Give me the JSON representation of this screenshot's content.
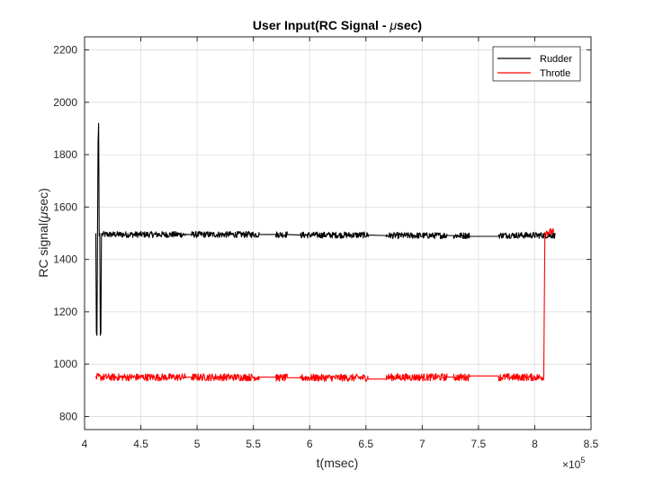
{
  "chart_data": {
    "type": "line",
    "title": "User Input(RC Signal - ",
    "title_symbol": "μ",
    "title_suffix": "sec)",
    "xlabel": "t(msec)",
    "ylabel": "RC signal(",
    "ylabel_symbol": "μ",
    "ylabel_suffix": "sec)",
    "x_exponent_base": "×10",
    "x_exponent_power": "5",
    "xlim": [
      4.0,
      8.5
    ],
    "ylim": [
      750,
      2250
    ],
    "x_ticks": [
      4,
      4.5,
      5,
      5.5,
      6,
      6.5,
      7,
      7.5,
      8,
      8.5
    ],
    "x_tick_labels": [
      "4",
      "4.5",
      "5",
      "5.5",
      "6",
      "6.5",
      "7",
      "7.5",
      "8",
      "8.5"
    ],
    "y_ticks": [
      800,
      1000,
      1200,
      1400,
      1600,
      1800,
      2000,
      2200
    ],
    "y_tick_labels": [
      "800",
      "1000",
      "1200",
      "1400",
      "1600",
      "1800",
      "2000",
      "2200"
    ],
    "grid": true,
    "legend_position": "top-right",
    "series": [
      {
        "name": "Rudder",
        "color": "#000000",
        "noise_amplitude": 12,
        "segments": [
          {
            "x": [
              4.1,
              4.105,
              4.11,
              4.115,
              4.12,
              4.125,
              4.13,
              4.135,
              4.14,
              4.145,
              4.15,
              4.155,
              4.16
            ],
            "y": [
              1500,
              1120,
              1110,
              1500,
              1850,
              1920,
              1490,
              1500,
              1110,
              1120,
              1490,
              1500,
              1495
            ],
            "noisy": false
          },
          {
            "x": [
              4.16,
              4.9
            ],
            "y": [
              1495,
              1495
            ],
            "noisy": true
          },
          {
            "x": [
              4.9,
              4.95
            ],
            "y": [
              1495,
              1495
            ],
            "noisy": false
          },
          {
            "x": [
              4.95,
              5.55
            ],
            "y": [
              1495,
              1495
            ],
            "noisy": true
          },
          {
            "x": [
              5.55,
              5.7
            ],
            "y": [
              1495,
              1495
            ],
            "noisy": false
          },
          {
            "x": [
              5.7,
              5.8
            ],
            "y": [
              1495,
              1495
            ],
            "noisy": true
          },
          {
            "x": [
              5.8,
              5.92
            ],
            "y": [
              1495,
              1493
            ],
            "noisy": false
          },
          {
            "x": [
              5.92,
              6.52
            ],
            "y": [
              1493,
              1493
            ],
            "noisy": true
          },
          {
            "x": [
              6.52,
              6.68
            ],
            "y": [
              1493,
              1491
            ],
            "noisy": false
          },
          {
            "x": [
              6.68,
              7.22
            ],
            "y": [
              1491,
              1491
            ],
            "noisy": true
          },
          {
            "x": [
              7.22,
              7.28
            ],
            "y": [
              1491,
              1491
            ],
            "noisy": false
          },
          {
            "x": [
              7.28,
              7.42
            ],
            "y": [
              1491,
              1491
            ],
            "noisy": true
          },
          {
            "x": [
              7.42,
              7.68
            ],
            "y": [
              1488,
              1488
            ],
            "noisy": false
          },
          {
            "x": [
              7.68,
              8.18
            ],
            "y": [
              1492,
              1492
            ],
            "noisy": true
          }
        ]
      },
      {
        "name": "Throtle",
        "color": "#ff0000",
        "noise_amplitude": 14,
        "segments": [
          {
            "x": [
              4.1,
              4.9
            ],
            "y": [
              950,
              950
            ],
            "noisy": true
          },
          {
            "x": [
              4.9,
              4.95
            ],
            "y": [
              950,
              950
            ],
            "noisy": false
          },
          {
            "x": [
              4.95,
              5.55
            ],
            "y": [
              950,
              950
            ],
            "noisy": true
          },
          {
            "x": [
              5.55,
              5.7
            ],
            "y": [
              950,
              950
            ],
            "noisy": false
          },
          {
            "x": [
              5.7,
              5.8
            ],
            "y": [
              948,
              948
            ],
            "noisy": true
          },
          {
            "x": [
              5.8,
              5.92
            ],
            "y": [
              948,
              948
            ],
            "noisy": false
          },
          {
            "x": [
              5.92,
              6.52
            ],
            "y": [
              948,
              948
            ],
            "noisy": true
          },
          {
            "x": [
              6.52,
              6.68
            ],
            "y": [
              943,
              943
            ],
            "noisy": false
          },
          {
            "x": [
              6.68,
              7.22
            ],
            "y": [
              950,
              950
            ],
            "noisy": true
          },
          {
            "x": [
              7.22,
              7.28
            ],
            "y": [
              950,
              950
            ],
            "noisy": false
          },
          {
            "x": [
              7.28,
              7.42
            ],
            "y": [
              950,
              950
            ],
            "noisy": true
          },
          {
            "x": [
              7.42,
              7.68
            ],
            "y": [
              955,
              955
            ],
            "noisy": false
          },
          {
            "x": [
              7.68,
              8.08
            ],
            "y": [
              950,
              950
            ],
            "noisy": true
          },
          {
            "x": [
              8.08,
              8.09,
              8.1
            ],
            "y": [
              945,
              1500,
              1500
            ],
            "noisy": false
          },
          {
            "x": [
              8.1,
              8.17
            ],
            "y": [
              1505,
              1505
            ],
            "noisy": true
          }
        ]
      }
    ]
  }
}
